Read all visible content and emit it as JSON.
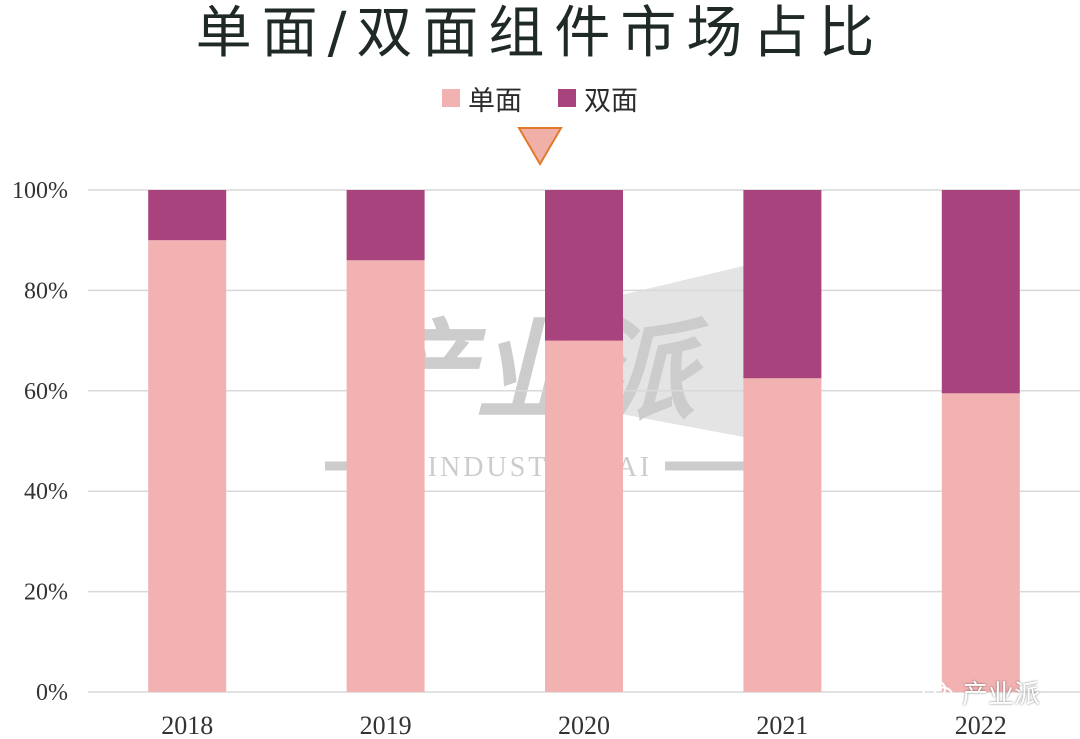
{
  "chart_data": {
    "type": "bar",
    "stacked": true,
    "title": "单面/双面组件市场占比",
    "categories": [
      "2018",
      "2019",
      "2020",
      "2021",
      "2022"
    ],
    "series": [
      {
        "name": "单面",
        "values": [
          90,
          86,
          70,
          62.5,
          59.5
        ],
        "color": "#f2b2b2"
      },
      {
        "name": "双面",
        "values": [
          10,
          14,
          30,
          37.5,
          40.5
        ],
        "color": "#a8437e"
      }
    ],
    "ylim": [
      0,
      100
    ],
    "yticks": [
      "0%",
      "20%",
      "40%",
      "60%",
      "80%",
      "100%"
    ],
    "grid": true,
    "legend_position": "top-center",
    "xlabel": "",
    "ylabel": ""
  },
  "marker": {
    "color": "#f0b0a8",
    "border": "#e07a2a"
  },
  "watermark": {
    "text": "产业派",
    "subtext": "INDUSTRY PAI"
  },
  "brand_mark": {
    "icon": "wechat-icon",
    "text": "产业派"
  }
}
